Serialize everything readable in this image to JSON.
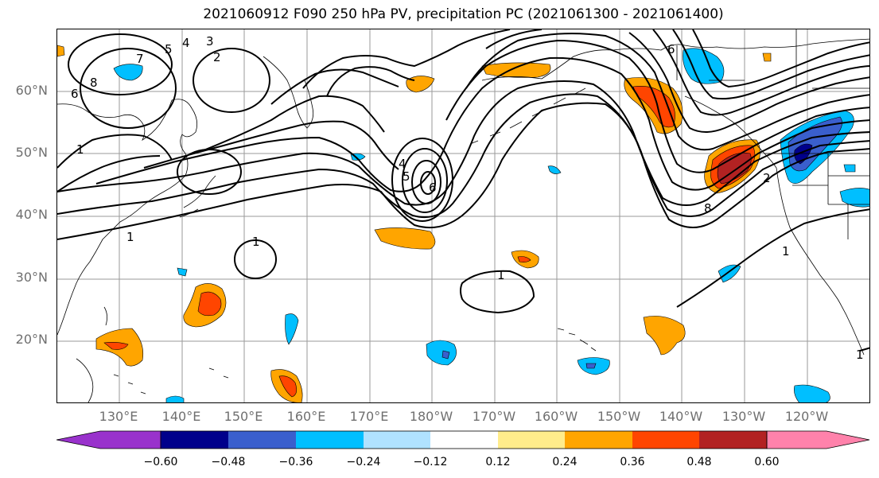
{
  "title": "2021060912 F090 250 hPa PV, precipitation PC (2021061300 - 2021061400)",
  "lat_labels": [
    "60°N",
    "50°N",
    "40°N",
    "30°N",
    "20°N"
  ],
  "lon_labels": [
    "130°E",
    "140°E",
    "150°E",
    "160°E",
    "170°E",
    "180°W",
    "170°W",
    "160°W",
    "150°W",
    "140°W",
    "130°W",
    "120°W"
  ],
  "contour_labels": [
    "1",
    "2",
    "3",
    "4",
    "5",
    "6",
    "7",
    "8",
    "1",
    "1",
    "1",
    "4",
    "5",
    "6",
    "8",
    "6",
    "1",
    "1",
    "2"
  ],
  "colorbar": {
    "ticks": [
      "−0.60",
      "−0.48",
      "−0.36",
      "−0.24",
      "−0.12",
      "0.12",
      "0.24",
      "0.36",
      "0.48",
      "0.60"
    ],
    "colors": [
      "#9932cc",
      "#00008b",
      "#3a5fcd",
      "#00bfff",
      "#b0e2ff",
      "#ffffff",
      "#ffec8b",
      "#ffa500",
      "#ff4500",
      "#b22222",
      "#ff82ab"
    ]
  },
  "colors": {
    "pv_contours": "#000000",
    "coastline": "#000000",
    "gridlines": "#9a9a9a",
    "axis_labels": "#6f6f6f"
  }
}
